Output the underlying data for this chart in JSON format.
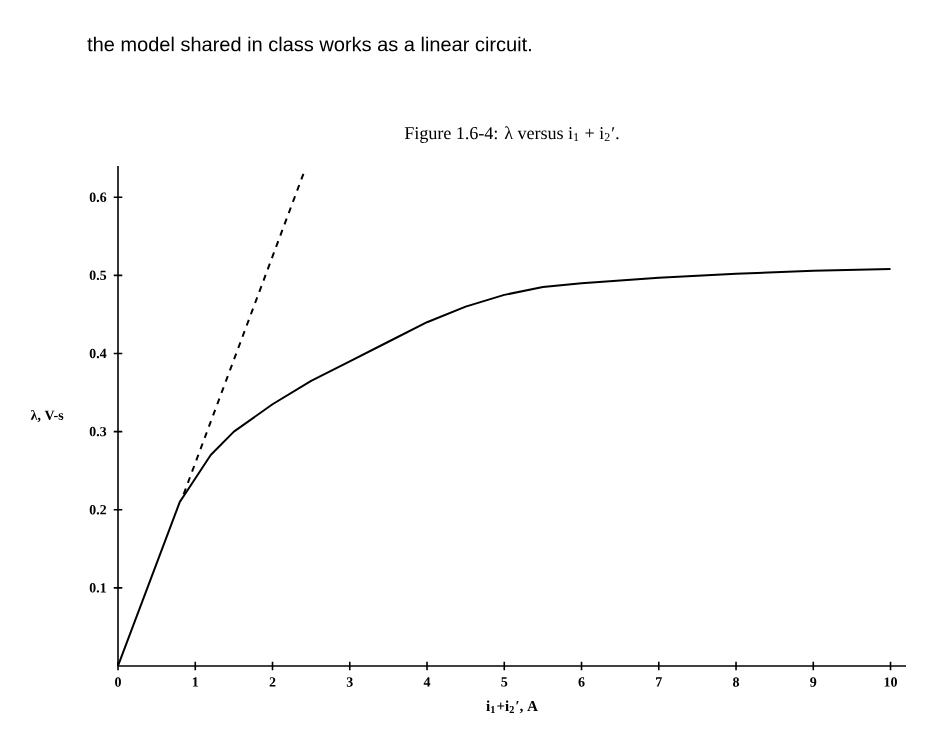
{
  "chart_data": {
    "type": "line",
    "title": "Figure 1.6-4: λ versus i$_{1}$ + i$_{2}$′.",
    "xlabel": "i$_{1}$+i$_{2}$′, A",
    "ylabel": "λ, V-s",
    "annotations": [
      "the model shared in class works as a linear circuit."
    ],
    "xlim": [
      0,
      10.2
    ],
    "ylim": [
      0,
      0.64
    ],
    "xticks": [
      0,
      1,
      2,
      3,
      4,
      5,
      6,
      7,
      8,
      9,
      10
    ],
    "yticks": [
      0.1,
      0.2,
      0.3,
      0.4,
      0.5,
      0.6
    ],
    "series": [
      {
        "color": "#000000",
        "line_style": "solid",
        "x": [
          0,
          0.8,
          0.9,
          1.2,
          1.5,
          2,
          2.5,
          3,
          3.5,
          4,
          4.5,
          5,
          5.5,
          6,
          7,
          8,
          9,
          10
        ],
        "values": [
          0,
          0.21,
          0.225,
          0.27,
          0.3,
          0.335,
          0.365,
          0.39,
          0.415,
          0.44,
          0.46,
          0.475,
          0.485,
          0.49,
          0.497,
          0.502,
          0.506,
          0.508
        ]
      },
      {
        "color": "#000000",
        "line_style": "dashed",
        "x": [
          0.85,
          2.4
        ],
        "values": [
          0.22,
          0.63
        ]
      }
    ]
  }
}
